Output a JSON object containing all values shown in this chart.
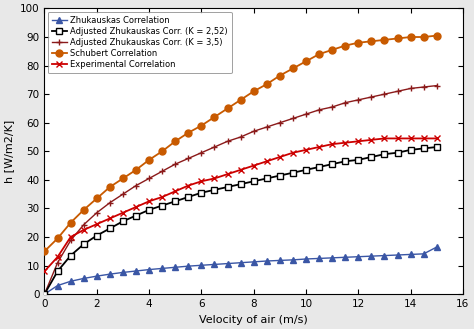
{
  "title": "",
  "xlabel": "Velocity of air (m/s)",
  "ylabel": "h [W/m2/K]",
  "xlim": [
    0,
    16
  ],
  "ylim": [
    0,
    100
  ],
  "xticks": [
    0,
    2,
    4,
    6,
    8,
    10,
    12,
    14,
    16
  ],
  "yticks": [
    0,
    10,
    20,
    30,
    40,
    50,
    60,
    70,
    80,
    90,
    100
  ],
  "series": {
    "zhukauskas": {
      "label": "Zhukauskas Correlation",
      "color": "#3A56A5",
      "marker": "^",
      "markersize": 4,
      "linewidth": 1.0,
      "x": [
        0,
        0.5,
        1.0,
        1.5,
        2.0,
        2.5,
        3.0,
        3.5,
        4.0,
        4.5,
        5.0,
        5.5,
        6.0,
        6.5,
        7.0,
        7.5,
        8.0,
        8.5,
        9.0,
        9.5,
        10.0,
        10.5,
        11.0,
        11.5,
        12.0,
        12.5,
        13.0,
        13.5,
        14.0,
        14.5,
        15.0
      ],
      "y": [
        0,
        3.0,
        4.5,
        5.5,
        6.3,
        7.0,
        7.6,
        8.1,
        8.6,
        9.0,
        9.4,
        9.8,
        10.1,
        10.4,
        10.7,
        11.0,
        11.3,
        11.6,
        11.8,
        12.0,
        12.3,
        12.5,
        12.7,
        12.9,
        13.1,
        13.3,
        13.5,
        13.7,
        13.9,
        14.1,
        16.5
      ]
    },
    "adj_zhukauskas_252": {
      "label": "Adjusted Zhukauskas Corr. (K = 2,52)",
      "color": "#000000",
      "marker": "s",
      "markersize": 4.5,
      "linewidth": 1.3,
      "markerfacecolor": "white",
      "x": [
        0,
        0.5,
        1.0,
        1.5,
        2.0,
        2.5,
        3.0,
        3.5,
        4.0,
        4.5,
        5.0,
        5.5,
        6.0,
        6.5,
        7.0,
        7.5,
        8.0,
        8.5,
        9.0,
        9.5,
        10.0,
        10.5,
        11.0,
        11.5,
        12.0,
        12.5,
        13.0,
        13.5,
        14.0,
        14.5,
        15.0
      ],
      "y": [
        0,
        8.0,
        13.5,
        17.5,
        20.5,
        23.0,
        25.5,
        27.5,
        29.5,
        31.0,
        32.5,
        34.0,
        35.5,
        36.5,
        37.5,
        38.5,
        39.5,
        40.5,
        41.5,
        42.5,
        43.5,
        44.5,
        45.5,
        46.5,
        47.0,
        48.0,
        49.0,
        49.5,
        50.5,
        51.0,
        51.5
      ]
    },
    "adj_zhukauskas_35": {
      "label": "Adjusted Zhukauskas Corr. (K = 3,5)",
      "color": "#8B1A1A",
      "marker": "+",
      "markersize": 5,
      "linewidth": 1.0,
      "x": [
        0,
        0.5,
        1.0,
        1.5,
        2.0,
        2.5,
        3.0,
        3.5,
        4.0,
        4.5,
        5.0,
        5.5,
        6.0,
        6.5,
        7.0,
        7.5,
        8.0,
        8.5,
        9.0,
        9.5,
        10.0,
        10.5,
        11.0,
        11.5,
        12.0,
        12.5,
        13.0,
        13.5,
        14.0,
        14.5,
        15.0
      ],
      "y": [
        0,
        11.0,
        18.8,
        24.3,
        28.5,
        32.0,
        35.0,
        38.0,
        40.5,
        43.0,
        45.5,
        47.5,
        49.5,
        51.5,
        53.5,
        55.0,
        57.0,
        58.5,
        60.0,
        61.5,
        63.0,
        64.5,
        65.5,
        67.0,
        68.0,
        69.0,
        70.0,
        71.0,
        72.0,
        72.5,
        73.0
      ]
    },
    "schubert": {
      "label": "Schubert Correlation",
      "color": "#C85A00",
      "marker": "o",
      "markersize": 5,
      "linewidth": 1.3,
      "x": [
        0,
        0.5,
        1.0,
        1.5,
        2.0,
        2.5,
        3.0,
        3.5,
        4.0,
        4.5,
        5.0,
        5.5,
        6.0,
        6.5,
        7.0,
        7.5,
        8.0,
        8.5,
        9.0,
        9.5,
        10.0,
        10.5,
        11.0,
        11.5,
        12.0,
        12.5,
        13.0,
        13.5,
        14.0,
        14.5,
        15.0
      ],
      "y": [
        15.0,
        19.5,
        25.0,
        29.5,
        33.5,
        37.5,
        40.5,
        43.5,
        47.0,
        50.0,
        53.5,
        56.5,
        59.0,
        62.0,
        65.0,
        68.0,
        71.0,
        73.5,
        76.5,
        79.0,
        81.5,
        84.0,
        85.5,
        87.0,
        88.0,
        88.5,
        89.0,
        89.5,
        90.0,
        90.0,
        90.5
      ]
    },
    "experimental": {
      "label": "Experimental Correlation",
      "color": "#CC0000",
      "marker": "x",
      "markersize": 5,
      "linewidth": 1.3,
      "x": [
        0,
        0.5,
        1.0,
        1.5,
        2.0,
        2.5,
        3.0,
        3.5,
        4.0,
        4.5,
        5.0,
        5.5,
        6.0,
        6.5,
        7.0,
        7.5,
        8.0,
        8.5,
        9.0,
        9.5,
        10.0,
        10.5,
        11.0,
        11.5,
        12.0,
        12.5,
        13.0,
        13.5,
        14.0,
        14.5,
        15.0
      ],
      "y": [
        8.0,
        13.0,
        20.0,
        22.5,
        24.5,
        26.5,
        28.5,
        30.5,
        32.5,
        34.0,
        36.0,
        38.0,
        39.5,
        40.5,
        42.0,
        43.5,
        45.0,
        46.5,
        48.0,
        49.5,
        50.5,
        51.5,
        52.5,
        53.0,
        53.5,
        54.0,
        54.5,
        54.5,
        54.5,
        54.5,
        54.5
      ]
    }
  },
  "legend_loc": "upper left",
  "background_color": "#ffffff",
  "plot_bg": "#ffffff",
  "outer_bg": "#e8e8e8",
  "grid": false
}
